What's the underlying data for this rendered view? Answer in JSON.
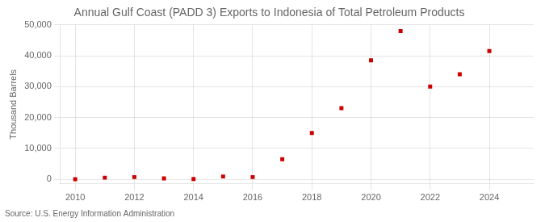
{
  "chart_data": {
    "type": "scatter",
    "title": "Annual Gulf Coast (PADD 3) Exports to Indonesia of Total Petroleum Products",
    "ylabel": "Thousand Barrels",
    "annotation": "Source: U.S. Energy Information Administration",
    "x": [
      2010,
      2011,
      2012,
      2013,
      2014,
      2015,
      2016,
      2017,
      2018,
      2019,
      2020,
      2021,
      2022,
      2023,
      2024
    ],
    "values": [
      0,
      500,
      700,
      300,
      100,
      900,
      700,
      6500,
      15000,
      23000,
      38500,
      48000,
      30000,
      34000,
      41500
    ],
    "color": "#cc0000",
    "marker": "square",
    "xlim": [
      2009.5,
      2025.5
    ],
    "ylim": [
      -1500,
      50000
    ],
    "xticks": [
      2010,
      2012,
      2014,
      2016,
      2018,
      2020,
      2022,
      2024
    ],
    "yticks": [
      0,
      {
        "value": 10000,
        "label": "10,000"
      },
      {
        "value": 20000,
        "label": "20,000"
      },
      {
        "value": 30000,
        "label": "30,000"
      },
      {
        "value": 40000,
        "label": "40,000"
      },
      {
        "value": 50000,
        "label": "50,000"
      }
    ],
    "grid": true
  }
}
